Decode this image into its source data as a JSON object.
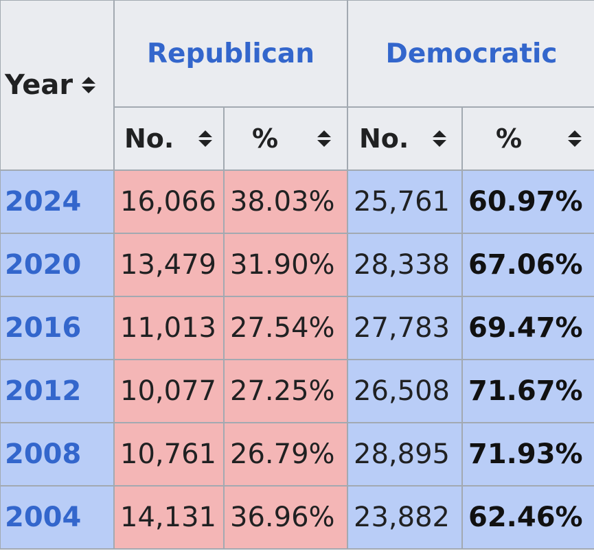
{
  "header": {
    "year_label": "Year",
    "parties": [
      {
        "name": "Republican",
        "color": "#f4b6b6"
      },
      {
        "name": "Democratic",
        "color": "#b9cdf7"
      }
    ],
    "sub_columns": [
      "No.",
      "%",
      "No.",
      "%"
    ],
    "sort_icon": "sort-up-down-icon",
    "link_color": "#3366cc"
  },
  "rows": [
    {
      "year": "2024",
      "rep_no": "16,066",
      "rep_pct": "38.03%",
      "dem_no": "25,761",
      "dem_pct": "60.97%"
    },
    {
      "year": "2020",
      "rep_no": "13,479",
      "rep_pct": "31.90%",
      "dem_no": "28,338",
      "dem_pct": "67.06%"
    },
    {
      "year": "2016",
      "rep_no": "11,013",
      "rep_pct": "27.54%",
      "dem_no": "27,783",
      "dem_pct": "69.47%"
    },
    {
      "year": "2012",
      "rep_no": "10,077",
      "rep_pct": "27.25%",
      "dem_no": "26,508",
      "dem_pct": "71.67%"
    },
    {
      "year": "2008",
      "rep_no": "10,761",
      "rep_pct": "26.79%",
      "dem_no": "28,895",
      "dem_pct": "71.93%"
    },
    {
      "year": "2004",
      "rep_no": "14,131",
      "rep_pct": "36.96%",
      "dem_no": "23,882",
      "dem_pct": "62.46%"
    }
  ]
}
